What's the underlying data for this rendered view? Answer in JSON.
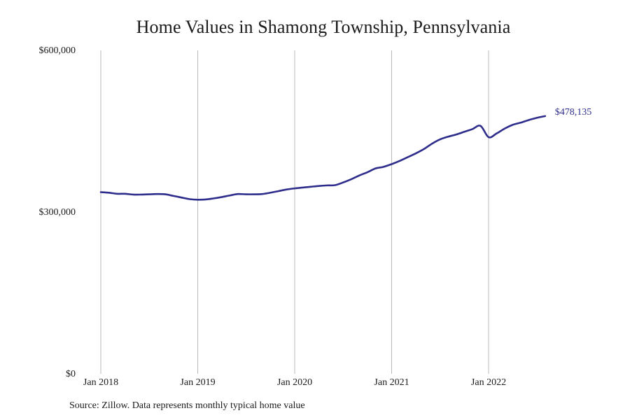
{
  "chart_data": {
    "type": "line",
    "title": "Home Values in Shamong Township, Pennsylvania",
    "xlabel": "",
    "ylabel": "",
    "ylim": [
      0,
      600000
    ],
    "xlim": [
      "2018-01",
      "2022-08"
    ],
    "grid": "vertical",
    "y_ticks": [
      {
        "value": 0,
        "label": "$0"
      },
      {
        "value": 300000,
        "label": "$300,000"
      },
      {
        "value": 600000,
        "label": "$600,000"
      }
    ],
    "x_ticks": [
      {
        "value": "2018-01",
        "label": "Jan 2018"
      },
      {
        "value": "2019-01",
        "label": "Jan 2019"
      },
      {
        "value": "2020-01",
        "label": "Jan 2020"
      },
      {
        "value": "2021-01",
        "label": "Jan 2021"
      },
      {
        "value": "2022-01",
        "label": "Jan 2022"
      }
    ],
    "series": [
      {
        "color": "#2e2d8c",
        "x": [
          "2018-01",
          "2018-02",
          "2018-03",
          "2018-04",
          "2018-05",
          "2018-06",
          "2018-07",
          "2018-08",
          "2018-09",
          "2018-10",
          "2018-11",
          "2018-12",
          "2019-01",
          "2019-02",
          "2019-03",
          "2019-04",
          "2019-05",
          "2019-06",
          "2019-07",
          "2019-08",
          "2019-09",
          "2019-10",
          "2019-11",
          "2019-12",
          "2020-01",
          "2020-02",
          "2020-03",
          "2020-04",
          "2020-05",
          "2020-06",
          "2020-07",
          "2020-08",
          "2020-09",
          "2020-10",
          "2020-11",
          "2020-12",
          "2021-01",
          "2021-02",
          "2021-03",
          "2021-04",
          "2021-05",
          "2021-06",
          "2021-07",
          "2021-08",
          "2021-09",
          "2021-10",
          "2021-11",
          "2021-12",
          "2022-01",
          "2022-02",
          "2022-03",
          "2022-04",
          "2022-05",
          "2022-06",
          "2022-07",
          "2022-08"
        ],
        "values": [
          337000,
          336000,
          334000,
          334000,
          332500,
          332500,
          333000,
          333500,
          333000,
          330000,
          327000,
          324000,
          323000,
          323500,
          325500,
          328000,
          331000,
          333500,
          333000,
          333000,
          333500,
          336000,
          339000,
          342000,
          344000,
          345500,
          347000,
          348500,
          349500,
          350000,
          355000,
          361000,
          368000,
          374000,
          381000,
          384000,
          389000,
          395000,
          402000,
          409000,
          417000,
          427000,
          435000,
          440000,
          444000,
          449000,
          454000,
          460000,
          466000,
          475000,
          486000,
          497000,
          505000,
          511000,
          478135,
          478135
        ],
        "end_label": "$478,135"
      }
    ],
    "source": "Source: Zillow. Data represents monthly typical home value"
  }
}
